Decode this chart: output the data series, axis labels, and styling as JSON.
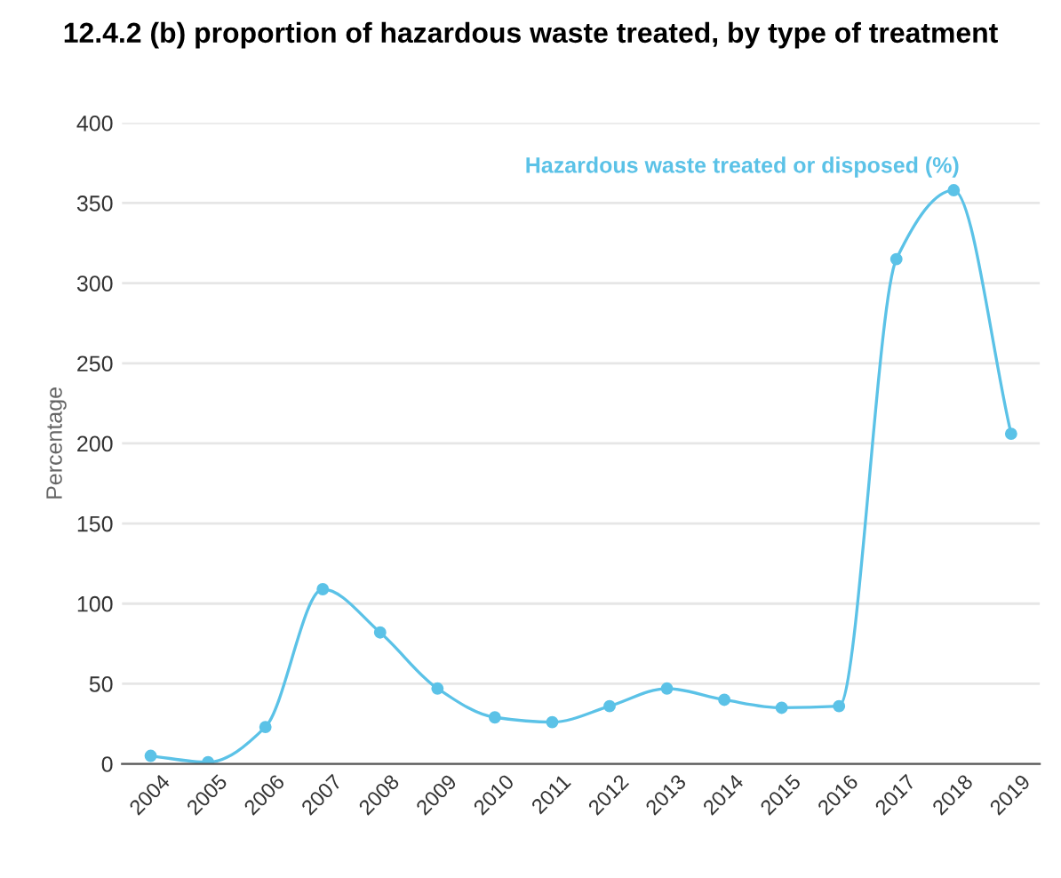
{
  "chart_data": {
    "type": "line",
    "title": "12.4.2 (b) proportion of hazardous waste treated, by type of treatment",
    "ylabel": "Percentage",
    "categories": [
      "2004",
      "2005",
      "2006",
      "2007",
      "2008",
      "2009",
      "2010",
      "2011",
      "2012",
      "2013",
      "2014",
      "2015",
      "2016",
      "2017",
      "2018",
      "2019"
    ],
    "series": [
      {
        "name": "Hazardous waste treated or disposed (%)",
        "color": "#5bc2e7",
        "values": [
          5,
          1,
          23,
          109,
          82,
          47,
          29,
          26,
          36,
          47,
          40,
          35,
          36,
          315,
          358,
          206
        ]
      }
    ],
    "ylim": [
      0,
      400
    ],
    "yticks": [
      0,
      50,
      100,
      150,
      200,
      250,
      300,
      350,
      400
    ],
    "grid": "y",
    "marker": "circle",
    "line_style": "solid",
    "legend": false
  }
}
